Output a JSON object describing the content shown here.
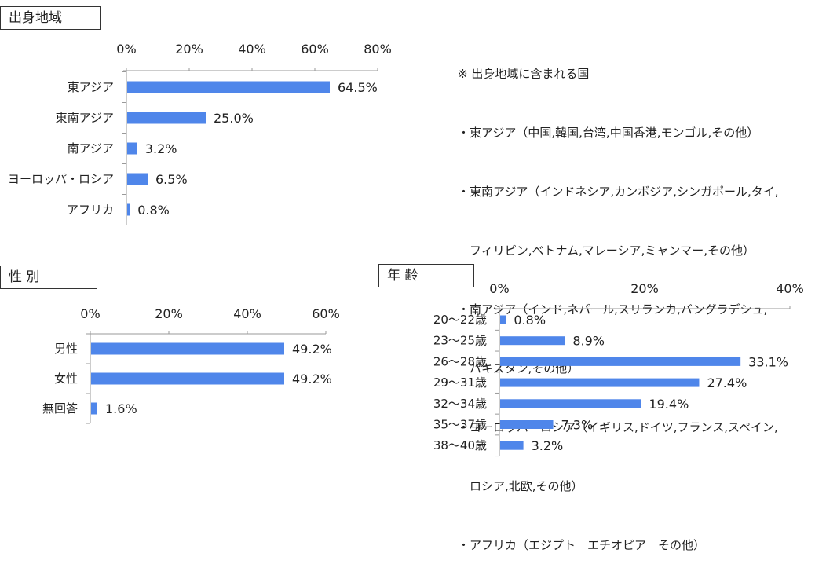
{
  "charts": [
    {
      "id": "origin",
      "title": "出身地域",
      "type": "bar",
      "categories": [
        "東アジア",
        "東南アジア",
        "南アジア",
        "ヨーロッパ・ロシア",
        "アフリカ"
      ],
      "values": [
        64.5,
        25.0,
        3.2,
        6.5,
        0.8
      ],
      "value_labels": [
        "64.5%",
        "25.0%",
        "3.2%",
        "6.5%",
        "0.8%"
      ],
      "xlim": [
        0,
        80
      ],
      "ticks": [
        "0%",
        "20%",
        "40%",
        "60%",
        "80%"
      ],
      "bar_color": "#4f86ea"
    },
    {
      "id": "gender",
      "title": "性 別",
      "type": "bar",
      "categories": [
        "男性",
        "女性",
        "無回答"
      ],
      "values": [
        49.2,
        49.2,
        1.6
      ],
      "value_labels": [
        "49.2%",
        "49.2%",
        "1.6%"
      ],
      "xlim": [
        0,
        60
      ],
      "ticks": [
        "0%",
        "20%",
        "40%",
        "60%"
      ],
      "bar_color": "#4f86ea"
    },
    {
      "id": "age",
      "title": "年 齢",
      "type": "bar",
      "categories": [
        "20～22歳",
        "23～25歳",
        "26～28歳",
        "29～31歳",
        "32～34歳",
        "35～37歳",
        "38～40歳"
      ],
      "values": [
        0.8,
        8.9,
        33.1,
        27.4,
        19.4,
        7.3,
        3.2
      ],
      "value_labels": [
        "0.8%",
        "8.9%",
        "33.1%",
        "27.4%",
        "19.4%",
        "7.3%",
        "3.2%"
      ],
      "xlim": [
        0,
        40
      ],
      "ticks": [
        "0%",
        "20%",
        "40%"
      ],
      "bar_color": "#4f86ea"
    }
  ],
  "note_lines": [
    "※ 出身地域に含まれる国",
    "・東アジア（中国,韓国,台湾,中国香港,モンゴル,その他）",
    "・東南アジア（インドネシア,カンボジア,シンガポール,タイ,",
    "　フィリピン,ベトナム,マレーシア,ミャンマー,その他）",
    "・南アジア（インド,ネパール,スリランカ,バングラデシュ,",
    "　パキスタン,その他）",
    "・ヨーロッパ・ロシア（イギリス,ドイツ,フランス,スペイン,",
    "　ロシア,北欧,その他）",
    "・アフリカ（エジプト　エチオピア　その他）"
  ]
}
